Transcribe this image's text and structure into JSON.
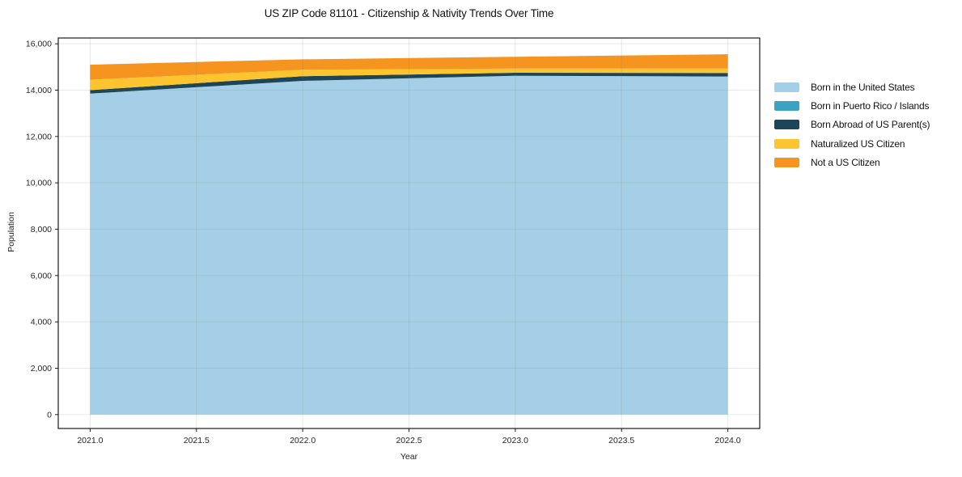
{
  "chart_data": {
    "type": "area",
    "stacked": true,
    "title": "US ZIP Code 81101 - Citizenship & Nativity Trends Over Time",
    "xlabel": "Year",
    "ylabel": "Population",
    "x": [
      2021,
      2022,
      2023,
      2024
    ],
    "series": [
      {
        "name": "Born in the United States",
        "color": "#a5cfe6",
        "values": [
          13850,
          14400,
          14620,
          14590
        ]
      },
      {
        "name": "Born in Puerto Rico / Islands",
        "color": "#3aa3c2",
        "values": [
          0,
          0,
          0,
          0
        ]
      },
      {
        "name": "Born Abroad of US Parent(s)",
        "color": "#1e4557",
        "values": [
          150,
          200,
          130,
          150
        ]
      },
      {
        "name": "Naturalized US Citizen",
        "color": "#fcc42e",
        "values": [
          450,
          280,
          180,
          190
        ]
      },
      {
        "name": "Not a US Citizen",
        "color": "#f5941f",
        "values": [
          650,
          450,
          510,
          620
        ]
      }
    ],
    "stacked_totals": [
      15100,
      15330,
      15440,
      15550
    ],
    "xlim": [
      2020.85,
      2024.15
    ],
    "ylim": [
      -600,
      16250
    ],
    "xticks": [
      2021.0,
      2021.5,
      2022.0,
      2022.5,
      2023.0,
      2023.5,
      2024.0
    ],
    "xtick_labels": [
      "2021.0",
      "2021.5",
      "2022.0",
      "2022.5",
      "2023.0",
      "2023.5",
      "2024.0"
    ],
    "yticks": [
      0,
      2000,
      4000,
      6000,
      8000,
      10000,
      12000,
      14000,
      16000
    ],
    "ytick_labels": [
      "0",
      "2,000",
      "4,000",
      "6,000",
      "8,000",
      "10,000",
      "12,000",
      "14,000",
      "16,000"
    ],
    "grid": true,
    "legend_position": "right of plot, no frame"
  },
  "colors": {
    "background": "#ffffff",
    "grid": "#e8e8e8",
    "spine": "#1a1a1a",
    "tick_text": "#262626"
  }
}
